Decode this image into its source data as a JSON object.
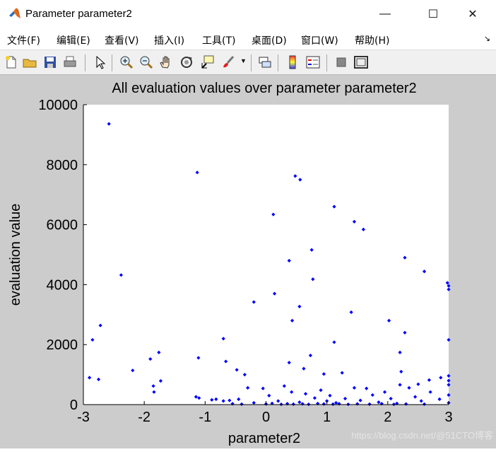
{
  "window": {
    "title": "Parameter parameter2",
    "minimize_glyph": "—",
    "maximize_glyph": "☐",
    "close_glyph": "✕"
  },
  "menu": {
    "items": [
      "文件(F)",
      "编辑(E)",
      "查看(V)",
      "插入(I)",
      "工具(T)",
      "桌面(D)",
      "窗口(W)",
      "帮助(H)"
    ],
    "overflow_glyph": "↘"
  },
  "toolbar": {
    "buttons": [
      "new-figure-icon",
      "open-folder-icon",
      "save-icon",
      "print-icon",
      "pointer-icon",
      "zoom-in-icon",
      "zoom-out-icon",
      "pan-hand-icon",
      "rotate-3d-icon",
      "data-cursor-icon",
      "brush-icon",
      "link-plot-icon",
      "colorbar-icon",
      "legend-icon",
      "hide-tools-icon",
      "show-tools-icon"
    ]
  },
  "watermark": "https://blog.csdn.net/@51CTO博客",
  "chart_data": {
    "type": "scatter",
    "title": "All evaluation values over parameter parameter2",
    "xlabel": "parameter2",
    "ylabel": "evaluation value",
    "xlim": [
      -3,
      3
    ],
    "ylim": [
      0,
      10000
    ],
    "xticks": [
      "-3",
      "-2",
      "-1",
      "0",
      "1",
      "2",
      "3"
    ],
    "yticks": [
      "0",
      "2000",
      "4000",
      "6000",
      "8000",
      "10000"
    ],
    "grid": false,
    "marker_color": "#0000ff",
    "points": [
      [
        -2.58,
        9360
      ],
      [
        -1.13,
        7740
      ],
      [
        0.48,
        7620
      ],
      [
        0.56,
        7500
      ],
      [
        0.12,
        6340
      ],
      [
        1.12,
        6600
      ],
      [
        1.45,
        6100
      ],
      [
        1.6,
        5840
      ],
      [
        0.75,
        5160
      ],
      [
        0.38,
        4800
      ],
      [
        2.28,
        4900
      ],
      [
        2.6,
        4440
      ],
      [
        -2.38,
        4320
      ],
      [
        0.77,
        4180
      ],
      [
        2.98,
        4060
      ],
      [
        3.0,
        3960
      ],
      [
        3.0,
        3840
      ],
      [
        0.14,
        3700
      ],
      [
        -0.2,
        3420
      ],
      [
        0.55,
        3270
      ],
      [
        1.4,
        3080
      ],
      [
        0.43,
        2800
      ],
      [
        2.02,
        2800
      ],
      [
        -2.72,
        2640
      ],
      [
        -2.85,
        2160
      ],
      [
        -0.7,
        2200
      ],
      [
        1.12,
        2080
      ],
      [
        3.0,
        2160
      ],
      [
        2.28,
        2400
      ],
      [
        -1.11,
        1560
      ],
      [
        -1.9,
        1520
      ],
      [
        -1.76,
        1740
      ],
      [
        0.73,
        1640
      ],
      [
        2.2,
        1740
      ],
      [
        -0.66,
        1440
      ],
      [
        0.38,
        1400
      ],
      [
        -2.19,
        1140
      ],
      [
        -0.48,
        1160
      ],
      [
        0.62,
        1200
      ],
      [
        0.95,
        1020
      ],
      [
        1.25,
        1060
      ],
      [
        -0.35,
        1000
      ],
      [
        2.22,
        1100
      ],
      [
        -2.9,
        900
      ],
      [
        -2.75,
        840
      ],
      [
        -1.73,
        790
      ],
      [
        -1.85,
        620
      ],
      [
        -1.84,
        420
      ],
      [
        2.87,
        900
      ],
      [
        3.0,
        960
      ],
      [
        2.68,
        820
      ],
      [
        3.0,
        800
      ],
      [
        3.0,
        660
      ],
      [
        2.2,
        660
      ],
      [
        2.5,
        680
      ],
      [
        -1.15,
        260
      ],
      [
        -1.1,
        220
      ],
      [
        -0.89,
        160
      ],
      [
        -0.82,
        180
      ],
      [
        -0.7,
        120
      ],
      [
        -0.6,
        140
      ],
      [
        -0.45,
        180
      ],
      [
        -0.3,
        560
      ],
      [
        -0.05,
        540
      ],
      [
        0.05,
        300
      ],
      [
        0.2,
        120
      ],
      [
        0.3,
        620
      ],
      [
        0.42,
        420
      ],
      [
        0.55,
        80
      ],
      [
        0.65,
        360
      ],
      [
        0.8,
        220
      ],
      [
        0.9,
        480
      ],
      [
        1.0,
        120
      ],
      [
        1.05,
        300
      ],
      [
        1.15,
        60
      ],
      [
        1.3,
        200
      ],
      [
        1.45,
        560
      ],
      [
        1.55,
        140
      ],
      [
        1.65,
        540
      ],
      [
        1.75,
        320
      ],
      [
        1.85,
        80
      ],
      [
        1.95,
        420
      ],
      [
        2.05,
        200
      ],
      [
        2.15,
        40
      ],
      [
        2.35,
        560
      ],
      [
        2.45,
        260
      ],
      [
        2.55,
        120
      ],
      [
        2.7,
        420
      ],
      [
        2.85,
        180
      ],
      [
        3.0,
        320
      ],
      [
        3.0,
        60
      ],
      [
        -0.2,
        60
      ],
      [
        0.0,
        20
      ],
      [
        0.1,
        40
      ],
      [
        0.25,
        10
      ],
      [
        0.35,
        30
      ],
      [
        0.45,
        15
      ],
      [
        0.6,
        25
      ],
      [
        0.7,
        10
      ],
      [
        0.85,
        35
      ],
      [
        0.95,
        20
      ],
      [
        1.1,
        15
      ],
      [
        1.2,
        30
      ],
      [
        1.35,
        10
      ],
      [
        1.5,
        25
      ],
      [
        1.7,
        15
      ],
      [
        1.9,
        30
      ],
      [
        2.1,
        10
      ],
      [
        2.3,
        20
      ],
      [
        2.6,
        15
      ],
      [
        -0.55,
        30
      ],
      [
        -0.4,
        15
      ]
    ]
  }
}
